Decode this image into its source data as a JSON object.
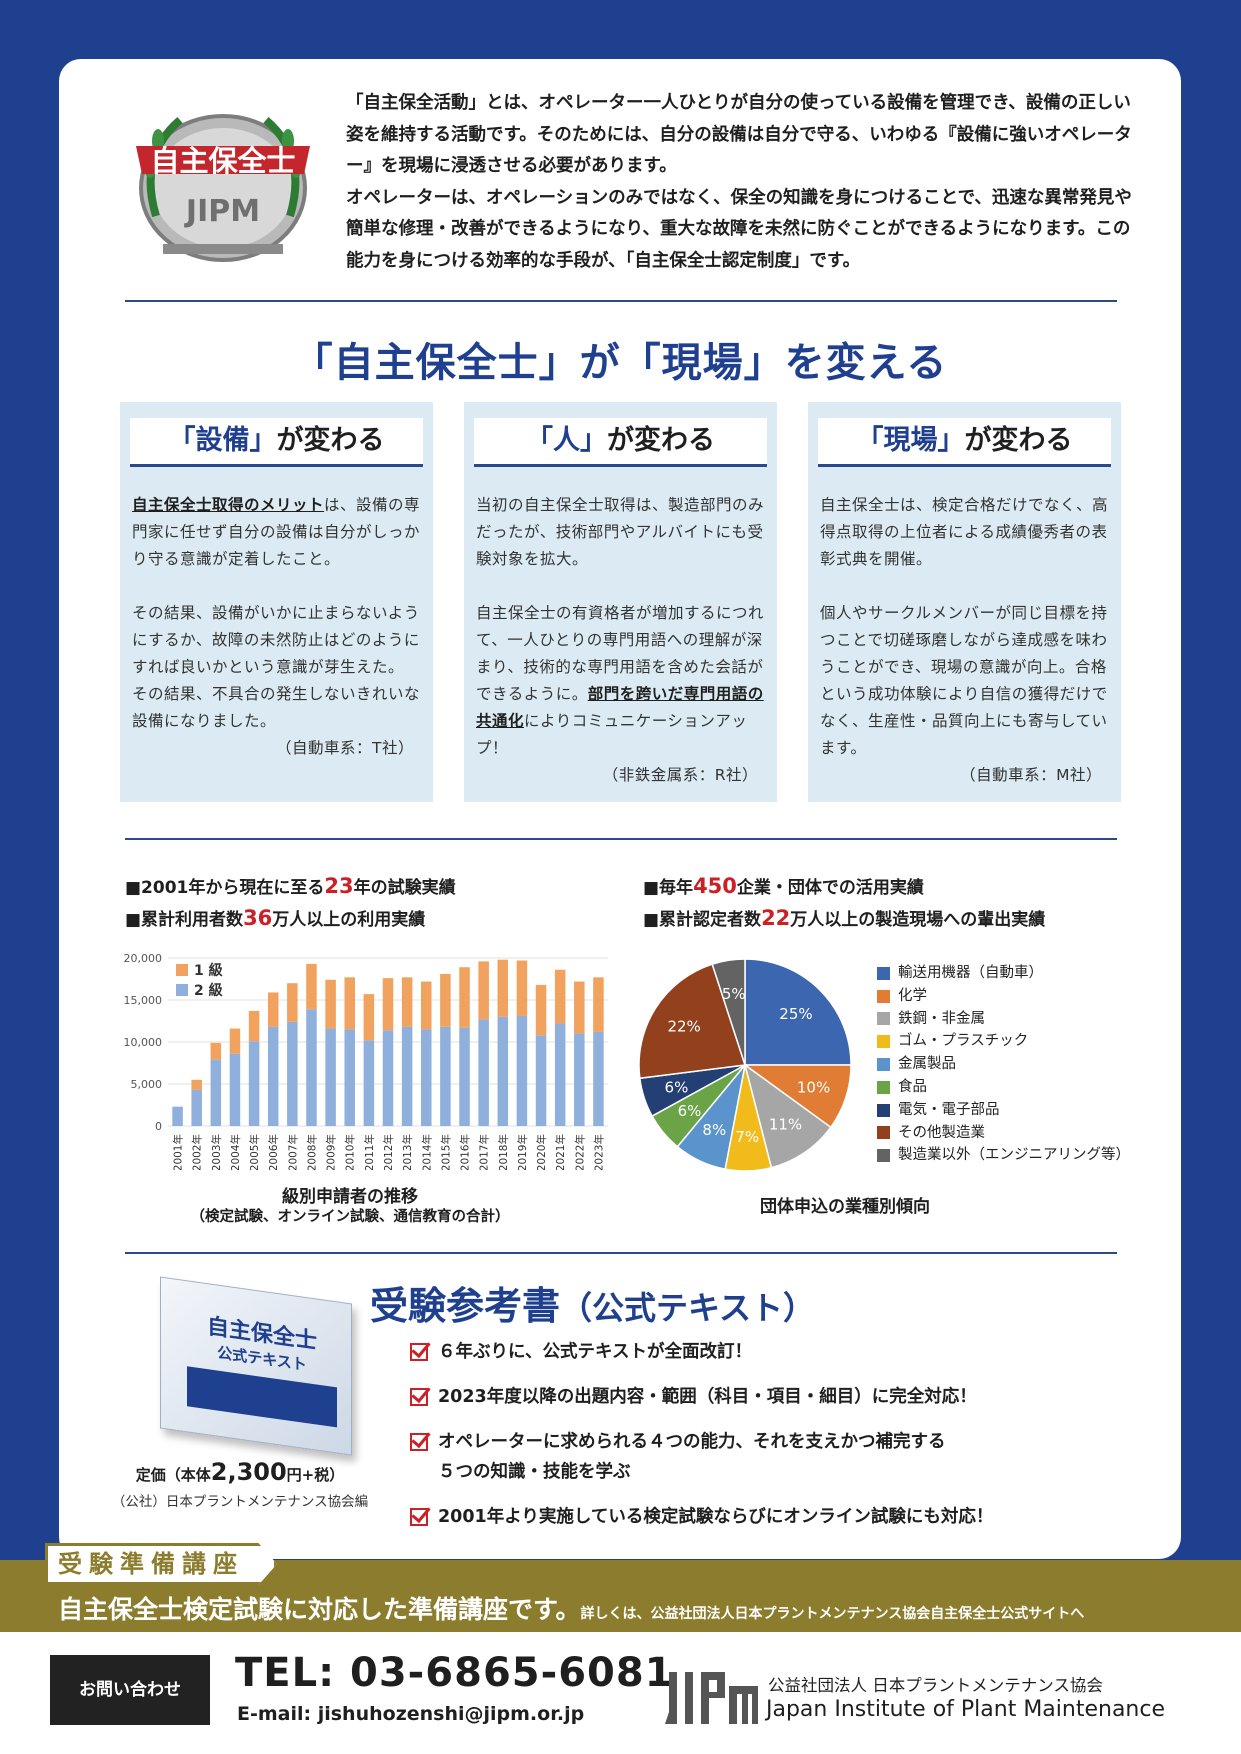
{
  "intro": {
    "emblem_text": "自主保全士",
    "emblem_logo": "JIPM",
    "p1": "「自主保全活動」とは、オペレーター一人ひとりが自分の使っている設備を管理でき、設備の正しい姿を維持する活動です。そのためには、自分の設備は自分で守る、いわゆる『設備に強いオペレーター』を現場に浸透させる必要があります。",
    "p2": "オペレーターは、オペレーションのみではなく、保全の知識を身につけることで、迅速な異常発見や簡単な修理・改善ができるようになり、重大な故障を未然に防ぐことができるようになります。この能力を身につける効率的な手段が、「自主保全士認定制度」です。"
  },
  "main_title": "「自主保全士」が「現場」を変える",
  "columns": [
    {
      "head_q": "「設備」",
      "head_rest": "が変わる",
      "lead_u": "自主保全士取得のメリット",
      "lead_rest": "は、設備の専門家に任せず自分の設備は自分がしっかり守る意識が定着したこと。",
      "p2": "その結果、設備がいかに止まらないようにするか、故障の未然防止はどのようにすれば良いかという意識が芽生えた。",
      "p3": "その結果、不具合の発生しないきれいな設備になりました。",
      "source": "（自動車系：T社）"
    },
    {
      "head_q": "「人」",
      "head_rest": "が変わる",
      "p1": "当初の自主保全士取得は、製造部門のみだったが、技術部門やアルバイトにも受験対象を拡大。",
      "p2a": "自主保全士の有資格者が増加するにつれて、一人ひとりの専門用語への理解が深まり、技術的な専門用語を含めた会話ができるように。",
      "p2u": "部門を跨いだ専門用語の共通化",
      "p2b": "によりコミュニケーションアップ！",
      "source": "（非鉄金属系：R社）"
    },
    {
      "head_q": "「現場」",
      "head_rest": "が変わる",
      "p1": "自主保全士は、検定合格だけでなく、高得点取得の上位者による成績優秀者の表彰式典を開催。",
      "p2": "個人やサークルメンバーが同じ目標を持つことで切磋琢磨しながら達成感を味わうことができ、現場の意識が向上。合格という成功体験により自信の獲得だけでなく、生産性・品質向上にも寄与しています。",
      "source": "（自動車系：M社）"
    }
  ],
  "stats_left": {
    "l1_a": "■2001年から現在に至る",
    "l1_num": "23",
    "l1_b": "年の試験実績",
    "l2_a": "■累計利用者数",
    "l2_num": "36",
    "l2_b": "万人以上の利用実績"
  },
  "stats_right": {
    "l1_a": "■毎年",
    "l1_num": "450",
    "l1_b": "企業・団体での活用実績",
    "l2_a": "■累計認定者数",
    "l2_num": "22",
    "l2_b": "万人以上の製造現場への輩出実績"
  },
  "chart_data": [
    {
      "type": "bar",
      "stacked": true,
      "title": "級別申請者の推移",
      "subtitle": "（検定試験、オンライン試験、通信教育の合計）",
      "categories": [
        "2001年",
        "2002年",
        "2003年",
        "2004年",
        "2005年",
        "2006年",
        "2007年",
        "2008年",
        "2009年",
        "2010年",
        "2011年",
        "2012年",
        "2013年",
        "2014年",
        "2015年",
        "2016年",
        "2017年",
        "2018年",
        "2019年",
        "2020年",
        "2021年",
        "2022年",
        "2023年"
      ],
      "series": [
        {
          "name": "2 級",
          "color": "#8fb0dd",
          "values": [
            2300,
            4300,
            7900,
            8600,
            10100,
            11800,
            12400,
            13900,
            11600,
            11500,
            10200,
            11400,
            11800,
            11500,
            11800,
            11700,
            12700,
            13000,
            13100,
            10800,
            12200,
            11000,
            11200
          ]
        },
        {
          "name": "1 級",
          "color": "#f0a25e",
          "values": [
            0,
            1200,
            2000,
            3000,
            3600,
            4100,
            4600,
            5400,
            5800,
            6200,
            5500,
            6200,
            5900,
            5700,
            6300,
            7200,
            6900,
            6800,
            6600,
            6000,
            6400,
            6200,
            6500
          ]
        }
      ],
      "yticks": [
        "20,000",
        "15,000",
        "10,000",
        "5,000",
        "0"
      ],
      "ylim": [
        0,
        20000
      ]
    },
    {
      "type": "pie",
      "title": "団体申込の業種別傾向",
      "series": [
        {
          "name": "輸送用機器（自動車）",
          "value": 25,
          "label": "25%",
          "color": "#3d66b0"
        },
        {
          "name": "化学",
          "value": 10,
          "label": "10%",
          "color": "#e07c33"
        },
        {
          "name": "鉄鋼・非金属",
          "value": 11,
          "label": "11%",
          "color": "#a6a6a6"
        },
        {
          "name": "ゴム・プラスチック",
          "value": 7,
          "label": "7%",
          "color": "#f2bb1c"
        },
        {
          "name": "金属製品",
          "value": 8,
          "label": "8%",
          "color": "#5b93cc"
        },
        {
          "name": "食品",
          "value": 6,
          "label": "6%",
          "color": "#6aa446"
        },
        {
          "name": "電気・電子部品",
          "value": 6,
          "label": "6%",
          "color": "#243f73"
        },
        {
          "name": "その他製造業",
          "value": 22,
          "label": "22%",
          "color": "#93411d"
        },
        {
          "name": "製造業以外（エンジニアリング等）",
          "value": 5,
          "label": "5%",
          "color": "#636363"
        }
      ]
    }
  ],
  "reference": {
    "title": "受験参考書",
    "title_small": "（公式テキスト）",
    "book_series": "自主保全士",
    "book_sub": "公式テキスト",
    "price_a": "定価（本体",
    "price_num": "2,300",
    "price_b": "円+税）",
    "publisher": "（公社）日本プラントメンテナンス協会編",
    "checks": [
      "６年ぶりに、公式テキストが全面改訂！",
      "2023年度以降の出題内容・範囲（科目・項目・細目）に完全対応！",
      "オペレーターに求められる４つの能力、それを支えかつ補完する",
      "2001年より実施している検定試験ならびにオンライン試験にも対応！"
    ],
    "check3_line2": "５つの知識・技能を学ぶ"
  },
  "band": {
    "tag": "受験準備講座",
    "main": "自主保全士検定試験に対応した準備講座です。",
    "small": "詳しくは、公益社団法人日本プラントメンテナンス協会自主保全士公式サイトへ"
  },
  "footer": {
    "contact_label": "お問い合わせ",
    "tel": "TEL: 03-6865-6081",
    "email": "E-mail: jishuhozenshi@jipm.or.jp",
    "org_ja": "公益社団法人 日本プラントメンテナンス協会",
    "org_en": "Japan Institute of Plant Maintenance"
  }
}
